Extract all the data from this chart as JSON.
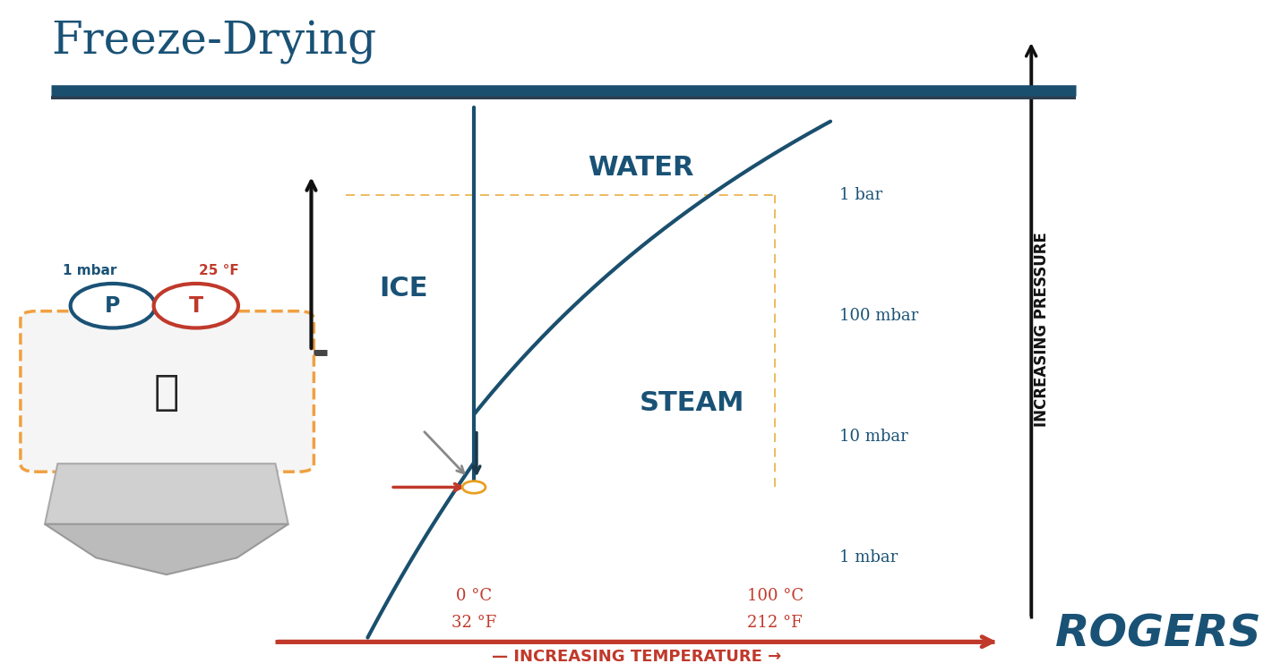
{
  "title": "Freeze-Drying",
  "title_color": "#1a5276",
  "title_fontsize": 36,
  "bg_color": "#ffffff",
  "bar_line_color": "#1a4f6e",
  "bar_line_color2": "#2c3e50",
  "curve_color": "#1a4f6e",
  "curve_linewidth": 3.0,
  "water_label": "WATER",
  "ice_label": "ICE",
  "steam_label": "STEAM",
  "label_color": "#1a5276",
  "label_fontsize": 22,
  "dashed_orange": "#e8a020",
  "pressure_label_color": "#1a5276",
  "pressure_label_fontsize": 13,
  "temp_color": "#c0392b",
  "temp_fontsize": 13,
  "triple_orange": "#e8a020",
  "x_axis_label": "INCREASING TEMPERATURE",
  "y_axis_label": "INCREASING PRESSURE",
  "axis_red": "#c0392b",
  "axis_dark": "#111111",
  "p_circle_color": "#1a5276",
  "t_circle_color": "#c0392b",
  "p_mbar": "1 mbar",
  "t_deg": "25 °F",
  "rogers_color": "#1a5276",
  "rogers_text": "ROGERS",
  "gray_arrow": "#888888",
  "dark_arrow": "#1a3a4a",
  "container_orange": "#f0a040",
  "container_fill": "#f5f5f5",
  "base_fill": "#cccccc",
  "base_edge": "#aaaaaa"
}
